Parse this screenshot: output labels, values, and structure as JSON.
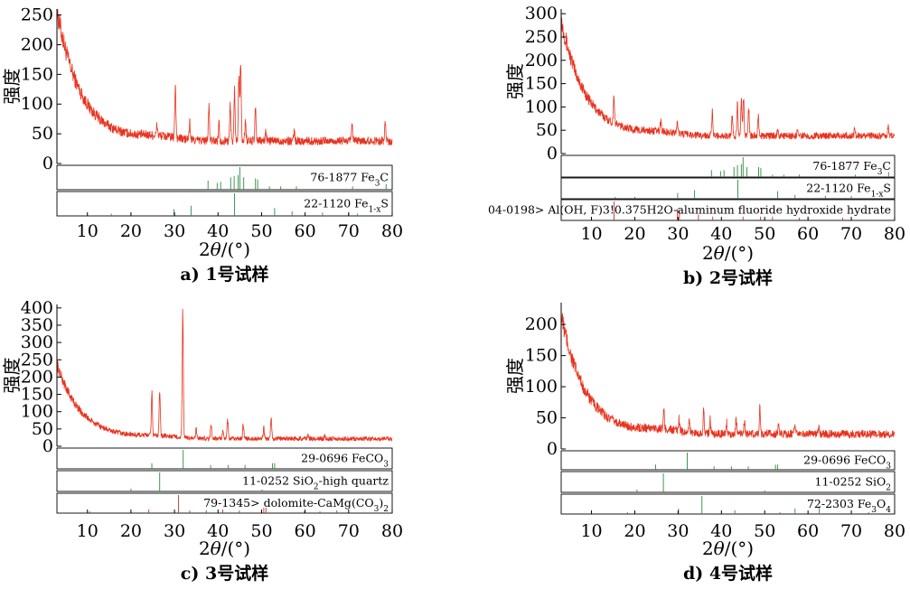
{
  "figure": {
    "x_axis_label": "2θ/(°)",
    "y_axis_label": "强度",
    "x_ticks": [
      "10",
      "20",
      "30",
      "40",
      "50",
      "60",
      "70",
      "80"
    ]
  },
  "chart_data": [
    {
      "type": "line",
      "caption": "a) 1号试样",
      "xlabel": "2θ/(°)",
      "ylabel": "强度",
      "xlim": [
        3,
        80
      ],
      "ylim": [
        0,
        260
      ],
      "y_ticks": [
        0,
        50,
        100,
        150,
        200,
        250
      ],
      "baseline": {
        "start": 255,
        "decay": 5.5,
        "floor": 38,
        "amp": 220
      },
      "peaks": [
        [
          26,
          18
        ],
        [
          30.2,
          95
        ],
        [
          33.5,
          30
        ],
        [
          37.9,
          60
        ],
        [
          40.2,
          30
        ],
        [
          42.8,
          58
        ],
        [
          43.8,
          85
        ],
        [
          44.8,
          120
        ],
        [
          45.2,
          128
        ],
        [
          46.3,
          35
        ],
        [
          48.6,
          52
        ],
        [
          51,
          18
        ],
        [
          57.5,
          15
        ],
        [
          70.8,
          26
        ],
        [
          78.4,
          32
        ]
      ],
      "references": [
        {
          "label": "76-1877 Fe3C",
          "formula_html": "76-1877 Fe<tspan baseline-shift='sub' font-size='9'>3</tspan>C",
          "color": "#2e8b3e",
          "lines": [
            [
              37.7,
              0.4
            ],
            [
              39.8,
              0.3
            ],
            [
              40.6,
              0.35
            ],
            [
              42.9,
              0.55
            ],
            [
              43.7,
              0.6
            ],
            [
              44.6,
              0.65
            ],
            [
              45.0,
              1.0
            ],
            [
              45.9,
              0.55
            ],
            [
              48.6,
              0.5
            ],
            [
              49.1,
              0.45
            ],
            [
              51.8,
              0.15
            ],
            [
              54.4,
              0.15
            ],
            [
              58.0,
              0.15
            ],
            [
              70.9,
              0.15
            ],
            [
              78.6,
              0.25
            ]
          ]
        },
        {
          "label": "22-1120 Fe1-xS",
          "formula_html": "22-1120 Fe<tspan baseline-shift='sub' font-size='9'>1-x</tspan>S",
          "color": "#2e8b3e",
          "lines": [
            [
              15.5,
              0.1
            ],
            [
              20.0,
              0.1
            ],
            [
              29.9,
              0.3
            ],
            [
              33.8,
              0.45
            ],
            [
              43.8,
              1.0
            ],
            [
              53.0,
              0.35
            ],
            [
              57.0,
              0.2
            ],
            [
              64.0,
              0.15
            ],
            [
              70.0,
              0.15
            ],
            [
              72.0,
              0.1
            ]
          ]
        }
      ]
    },
    {
      "type": "line",
      "caption": "b) 2号试样",
      "xlabel": "2θ/(°)",
      "ylabel": "强度",
      "xlim": [
        3,
        80
      ],
      "ylim": [
        0,
        310
      ],
      "y_ticks": [
        0,
        50,
        100,
        150,
        200,
        250,
        300
      ],
      "baseline": {
        "start": 285,
        "decay": 5.5,
        "floor": 38,
        "amp": 250
      },
      "peaks": [
        [
          15.2,
          60
        ],
        [
          26,
          22
        ],
        [
          29.8,
          25
        ],
        [
          37.9,
          50
        ],
        [
          42.5,
          45
        ],
        [
          43.7,
          65
        ],
        [
          44.6,
          80
        ],
        [
          45.1,
          88
        ],
        [
          46.3,
          60
        ],
        [
          48.5,
          40
        ],
        [
          53,
          18
        ],
        [
          57.6,
          12
        ],
        [
          70.8,
          16
        ],
        [
          78.5,
          18
        ]
      ],
      "references": [
        {
          "label": "76-1877 Fe3C",
          "formula_html": "76-1877 Fe<tspan baseline-shift='sub' font-size='9'>3</tspan>C",
          "color": "#2e8b3e",
          "lines": [
            [
              37.7,
              0.35
            ],
            [
              39.8,
              0.3
            ],
            [
              40.6,
              0.35
            ],
            [
              42.9,
              0.5
            ],
            [
              43.7,
              0.6
            ],
            [
              44.6,
              0.65
            ],
            [
              45.0,
              1.0
            ],
            [
              45.9,
              0.5
            ],
            [
              48.6,
              0.5
            ],
            [
              49.1,
              0.45
            ],
            [
              51.8,
              0.12
            ],
            [
              54.4,
              0.12
            ],
            [
              58.0,
              0.12
            ],
            [
              70.9,
              0.12
            ],
            [
              78.6,
              0.25
            ]
          ]
        },
        {
          "label": "22-1120 Fe1-xS",
          "formula_html": "22-1120 Fe<tspan baseline-shift='sub' font-size='9'>1-x</tspan>S",
          "color": "#2e8b3e",
          "lines": [
            [
              15.5,
              0.1
            ],
            [
              20.0,
              0.1
            ],
            [
              29.9,
              0.3
            ],
            [
              33.8,
              0.45
            ],
            [
              43.8,
              1.0
            ],
            [
              53.0,
              0.4
            ],
            [
              57.0,
              0.2
            ],
            [
              64.0,
              0.15
            ],
            [
              70.0,
              0.15
            ]
          ]
        },
        {
          "label": "04-0198> Al(OH, F)3!0.375H2O-aluminum fluoride hydroxide hydrate",
          "formula_html": "04-0198&gt; Al(OH, F)3!0.375H2O-aluminum fluoride hydroxide hydrate",
          "color": "#c03030",
          "lines": [
            [
              15.2,
              1.0
            ],
            [
              29.8,
              0.6
            ],
            [
              30.3,
              0.5
            ],
            [
              34.7,
              0.3
            ],
            [
              38.0,
              0.2
            ],
            [
              45.0,
              0.2
            ],
            [
              49.0,
              0.2
            ],
            [
              51.8,
              0.2
            ],
            [
              58.0,
              0.15
            ],
            [
              60.0,
              0.2
            ],
            [
              68.0,
              0.15
            ]
          ]
        }
      ]
    },
    {
      "type": "line",
      "caption": "c) 3号试样",
      "xlabel": "2θ/(°)",
      "ylabel": "强度",
      "xlim": [
        3,
        80
      ],
      "ylim": [
        0,
        410
      ],
      "y_ticks": [
        0,
        50,
        100,
        150,
        200,
        250,
        300,
        350,
        400
      ],
      "baseline": {
        "start": 230,
        "decay": 5.5,
        "floor": 22,
        "amp": 215
      },
      "peaks": [
        [
          24.8,
          125
        ],
        [
          26.6,
          140
        ],
        [
          31.9,
          365
        ],
        [
          35,
          25
        ],
        [
          38.4,
          45
        ],
        [
          41.1,
          20
        ],
        [
          42.2,
          55
        ],
        [
          45.8,
          45
        ],
        [
          50.5,
          30
        ],
        [
          52.2,
          70
        ],
        [
          60.7,
          18
        ],
        [
          64.5,
          12
        ]
      ],
      "references": [
        {
          "label": "29-0696 FeCO3",
          "formula_html": "29-0696 FeCO<tspan baseline-shift='sub' font-size='9'>3</tspan>",
          "color": "#2e8b3e",
          "lines": [
            [
              24.8,
              0.3
            ],
            [
              32.0,
              1.0
            ],
            [
              38.3,
              0.2
            ],
            [
              42.3,
              0.2
            ],
            [
              46.2,
              0.2
            ],
            [
              52.5,
              0.3
            ],
            [
              53.0,
              0.3
            ]
          ]
        },
        {
          "label": "11-0252 SiO2-high quartz",
          "formula_html": "11-0252 SiO<tspan baseline-shift='sub' font-size='9'>2</tspan>-high quartz",
          "color": "#2e8b3e",
          "lines": [
            [
              20.0,
              0.15
            ],
            [
              26.6,
              1.0
            ],
            [
              50.1,
              0.1
            ]
          ]
        },
        {
          "label": "79-1345> dolomite-CaMg(CO3)2",
          "formula_html": "79-1345&gt; dolomite-CaMg(CO<tspan baseline-shift='sub' font-size='9'>3</tspan>)<tspan baseline-shift='sub' font-size='9'>2</tspan>",
          "color": "#c03030",
          "lines": [
            [
              10.5,
              0.1
            ],
            [
              24.1,
              0.2
            ],
            [
              30.9,
              1.0
            ],
            [
              33.5,
              0.15
            ],
            [
              37.3,
              0.15
            ],
            [
              41.1,
              0.2
            ],
            [
              44.9,
              0.15
            ],
            [
              50.5,
              0.3
            ],
            [
              51.0,
              0.3
            ],
            [
              59.8,
              0.1
            ],
            [
              63.4,
              0.1
            ],
            [
              67.3,
              0.15
            ]
          ]
        }
      ]
    },
    {
      "type": "line",
      "caption": "d) 4号试样",
      "xlabel": "2θ/(°)",
      "ylabel": "强度",
      "xlim": [
        3,
        80
      ],
      "ylim": [
        0,
        235
      ],
      "y_ticks": [
        0,
        50,
        100,
        150,
        200
      ],
      "baseline": {
        "start": 215,
        "decay": 5.5,
        "floor": 24,
        "amp": 190
      },
      "peaks": [
        [
          26.7,
          28
        ],
        [
          30.2,
          20
        ],
        [
          32.6,
          22
        ],
        [
          35.9,
          40
        ],
        [
          37.4,
          25
        ],
        [
          41.2,
          18
        ],
        [
          43.4,
          25
        ],
        [
          45.3,
          22
        ],
        [
          48.9,
          45
        ],
        [
          53.2,
          15
        ],
        [
          56.9,
          12
        ],
        [
          62.5,
          10
        ]
      ],
      "references": [
        {
          "label": "29-0696 FeCO3",
          "formula_html": "29-0696 FeCO<tspan baseline-shift='sub' font-size='9'>3</tspan>",
          "color": "#2e8b3e",
          "lines": [
            [
              24.8,
              0.3
            ],
            [
              32.1,
              1.0
            ],
            [
              38.3,
              0.2
            ],
            [
              42.3,
              0.2
            ],
            [
              46.2,
              0.2
            ],
            [
              52.5,
              0.3
            ],
            [
              53.0,
              0.3
            ]
          ]
        },
        {
          "label": "11-0252 SiO2",
          "formula_html": "11-0252 SiO<tspan baseline-shift='sub' font-size='9'>2</tspan>",
          "color": "#2e8b3e",
          "lines": [
            [
              20.5,
              0.15
            ],
            [
              26.6,
              1.0
            ],
            [
              50.0,
              0.1
            ]
          ]
        },
        {
          "label": "72-2303 Fe3O4",
          "formula_html": "72-2303 Fe<tspan baseline-shift='sub' font-size='9'>3</tspan>O<tspan baseline-shift='sub' font-size='9'>4</tspan>",
          "color": "#2e8b3e",
          "lines": [
            [
              18.3,
              0.1
            ],
            [
              30.1,
              0.3
            ],
            [
              35.5,
              1.0
            ],
            [
              43.1,
              0.2
            ],
            [
              53.5,
              0.1
            ],
            [
              57.0,
              0.3
            ],
            [
              62.6,
              0.4
            ],
            [
              74.0,
              0.1
            ]
          ]
        }
      ]
    }
  ]
}
